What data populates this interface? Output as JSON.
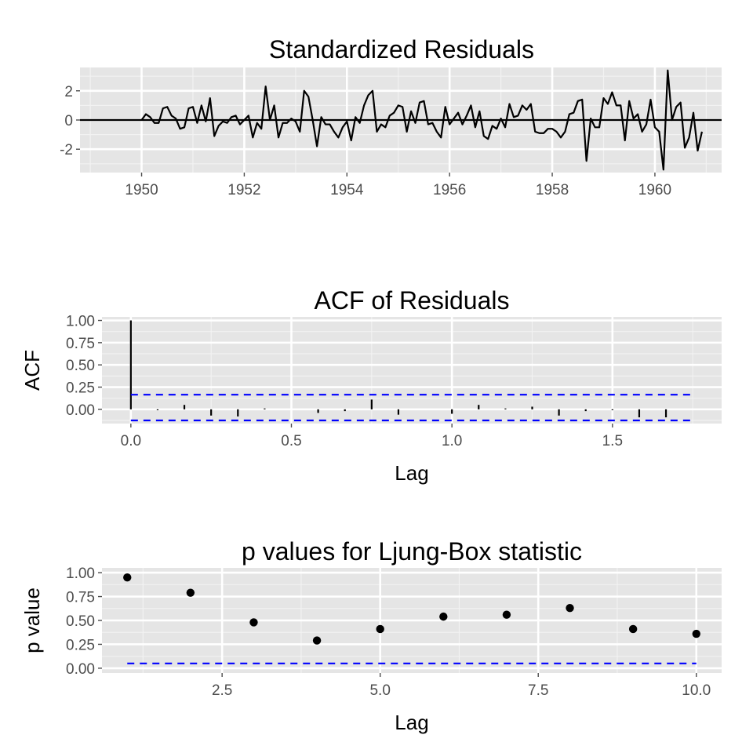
{
  "chart_data": [
    {
      "id": "residuals",
      "type": "line",
      "title": "Standardized Residuals",
      "xlabel": "",
      "ylabel": "",
      "xlim": [
        1948.8,
        1961.3
      ],
      "ylim": [
        -3.6,
        3.6
      ],
      "x_ticks": [
        1950,
        1952,
        1954,
        1956,
        1958,
        1960
      ],
      "x_tick_labels": [
        "1950",
        "1952",
        "1954",
        "1956",
        "1958",
        "1960"
      ],
      "y_ticks": [
        -2,
        0,
        2
      ],
      "y_tick_labels": [
        "-2",
        "0",
        "2"
      ],
      "hline": 0,
      "grid": true,
      "series": [
        {
          "x_start": 1950,
          "x_step": 0.08333333,
          "color": "#000000",
          "values": [
            0.0,
            0.4,
            0.2,
            -0.2,
            -0.2,
            0.8,
            0.9,
            0.3,
            0.1,
            -0.6,
            -0.5,
            0.8,
            0.9,
            -0.2,
            1.0,
            -0.1,
            1.5,
            -1.1,
            -0.4,
            -0.1,
            -0.2,
            0.2,
            0.3,
            -0.3,
            0.0,
            0.3,
            -1.2,
            -0.2,
            -0.6,
            2.3,
            0.0,
            1.0,
            -1.2,
            -0.2,
            -0.2,
            0.1,
            -0.1,
            -0.8,
            2.0,
            1.6,
            0.0,
            -1.8,
            0.2,
            -0.3,
            -0.3,
            -0.8,
            -1.2,
            -0.5,
            -0.1,
            -1.4,
            0.2,
            -0.2,
            1.0,
            1.7,
            2.0,
            -0.8,
            -0.3,
            -0.5,
            0.3,
            0.5,
            1.0,
            0.9,
            -0.8,
            0.6,
            -0.2,
            1.2,
            1.3,
            -0.3,
            -0.2,
            -0.8,
            -1.2,
            0.9,
            -0.3,
            0.1,
            0.5,
            -0.3,
            0.3,
            1.0,
            -0.5,
            0.6,
            -1.1,
            -1.3,
            -0.4,
            -0.6,
            0.1,
            -0.5,
            1.1,
            0.2,
            0.3,
            1.0,
            0.7,
            1.1,
            -0.8,
            -0.9,
            -0.9,
            -0.6,
            -0.6,
            -0.8,
            -1.2,
            -0.8,
            0.4,
            0.5,
            1.3,
            1.4,
            -2.8,
            0.1,
            -0.5,
            -0.5,
            1.5,
            1.1,
            1.9,
            1.0,
            1.0,
            -1.4,
            1.3,
            0.1,
            0.4,
            -0.8,
            -0.3,
            1.4,
            -0.5,
            -0.8,
            -3.4,
            3.4,
            0.0,
            0.9,
            1.2,
            -1.9,
            -1.2,
            0.5,
            -2.1,
            -0.8
          ]
        }
      ]
    },
    {
      "id": "acf",
      "type": "bar",
      "title": "ACF of Residuals",
      "xlabel": "Lag",
      "ylabel": "ACF",
      "xlim": [
        -0.09,
        1.84
      ],
      "ylim": [
        -0.16,
        1.04
      ],
      "x_ticks": [
        0.0,
        0.5,
        1.0,
        1.5
      ],
      "x_tick_labels": [
        "0.0",
        "0.5",
        "1.0",
        "1.5"
      ],
      "y_ticks": [
        0.0,
        0.25,
        0.5,
        0.75,
        1.0
      ],
      "y_tick_labels": [
        "0.00",
        "0.25",
        "0.50",
        "0.75",
        "1.00"
      ],
      "confidence_bounds": [
        0.165,
        -0.125
      ],
      "bound_color": "#0000ff",
      "grid": true,
      "lag_step": 0.08333333,
      "values": [
        1.0,
        -0.01,
        0.05,
        -0.07,
        -0.08,
        0.01,
        0.0,
        -0.04,
        -0.02,
        0.11,
        -0.06,
        0.0,
        -0.05,
        0.05,
        0.01,
        0.03,
        -0.07,
        -0.02,
        -0.01,
        -0.09,
        -0.09,
        0.0
      ]
    },
    {
      "id": "ljung_box",
      "type": "scatter",
      "title": "p values for Ljung-Box statistic",
      "xlabel": "Lag",
      "ylabel": "p value",
      "xlim": [
        0.6,
        10.4
      ],
      "ylim": [
        -0.05,
        1.05
      ],
      "x_ticks": [
        2.5,
        5.0,
        7.5,
        10.0
      ],
      "x_tick_labels": [
        "2.5",
        "5.0",
        "7.5",
        "10.0"
      ],
      "y_ticks": [
        0.0,
        0.25,
        0.5,
        0.75,
        1.0
      ],
      "y_tick_labels": [
        "0.00",
        "0.25",
        "0.50",
        "0.75",
        "1.00"
      ],
      "threshold": 0.05,
      "threshold_color": "#0000ff",
      "grid": true,
      "x": [
        1,
        2,
        3,
        4,
        5,
        6,
        7,
        8,
        9,
        10
      ],
      "y": [
        0.95,
        0.79,
        0.48,
        0.29,
        0.41,
        0.54,
        0.56,
        0.63,
        0.41,
        0.36
      ]
    }
  ]
}
